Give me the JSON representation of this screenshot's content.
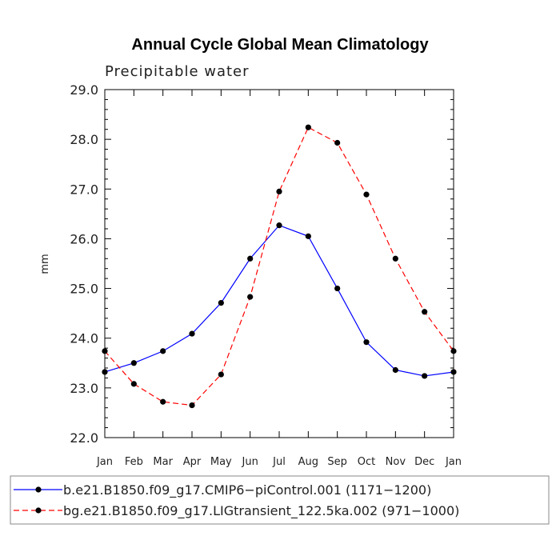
{
  "chart_data": {
    "type": "line",
    "title": "Annual Cycle Global Mean Climatology",
    "subtitle": "Precipitable water",
    "xlabel": "",
    "ylabel": "mm",
    "ylim": [
      22.0,
      29.0
    ],
    "yticks": [
      "22.0",
      "23.0",
      "24.0",
      "25.0",
      "26.0",
      "27.0",
      "28.0",
      "29.0"
    ],
    "categories": [
      "Jan",
      "Feb",
      "Mar",
      "Apr",
      "May",
      "Jun",
      "Jul",
      "Aug",
      "Sep",
      "Oct",
      "Nov",
      "Dec",
      "Jan"
    ],
    "series": [
      {
        "name": "b.e21.B1850.f09_g17.CMIP6−piControl.001 (1171−1200)",
        "color": "#0000ff",
        "dash": "solid",
        "values": [
          23.32,
          23.5,
          23.74,
          24.09,
          24.71,
          25.6,
          26.27,
          26.05,
          25.0,
          23.92,
          23.36,
          23.24,
          23.32
        ]
      },
      {
        "name": "bg.e21.B1850.f09_g17.LIGtransient_122.5ka.002 (971−1000)",
        "color": "#ff0000",
        "dash": "dashed",
        "values": [
          23.74,
          23.08,
          22.72,
          22.65,
          23.27,
          24.83,
          26.95,
          28.24,
          27.93,
          26.89,
          25.6,
          24.53,
          23.74
        ]
      }
    ]
  }
}
